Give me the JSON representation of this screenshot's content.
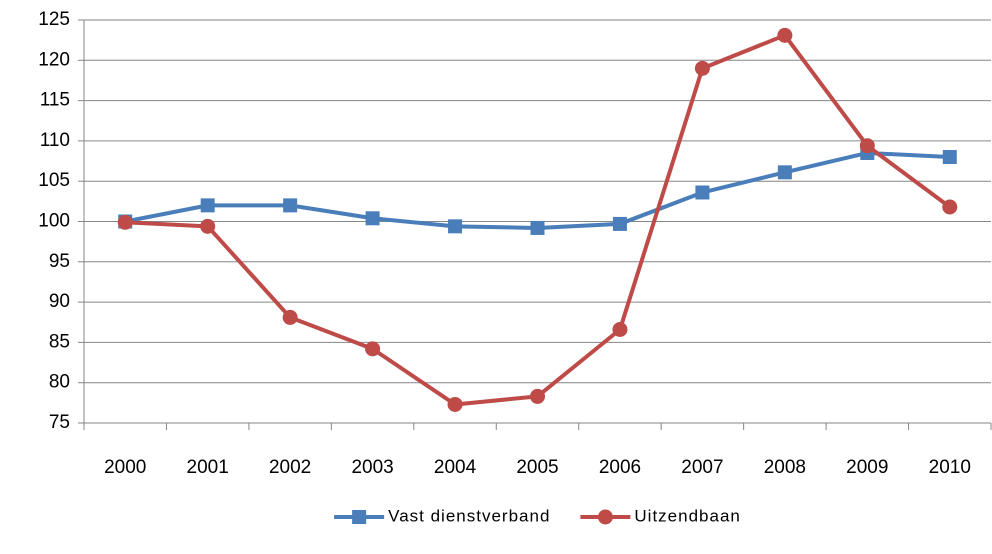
{
  "chart_data": {
    "type": "line",
    "categories": [
      "2000",
      "2001",
      "2002",
      "2003",
      "2004",
      "2005",
      "2006",
      "2007",
      "2008",
      "2009",
      "2010"
    ],
    "series": [
      {
        "name": "Vast dienstverband",
        "color": "#4a7ebb",
        "marker": "square",
        "values": [
          100,
          102,
          102,
          100.4,
          99.4,
          99.2,
          99.7,
          103.6,
          106.1,
          108.5,
          108
        ]
      },
      {
        "name": "Uitzendbaan",
        "color": "#be4b48",
        "marker": "circle",
        "values": [
          99.9,
          99.4,
          88.1,
          84.2,
          77.3,
          78.3,
          86.6,
          119,
          123.1,
          109.4,
          101.8
        ]
      }
    ],
    "ylim": [
      75,
      125
    ],
    "yticks": [
      75,
      80,
      85,
      90,
      95,
      100,
      105,
      110,
      115,
      120,
      125
    ],
    "grid": true,
    "legend": "bottom"
  }
}
